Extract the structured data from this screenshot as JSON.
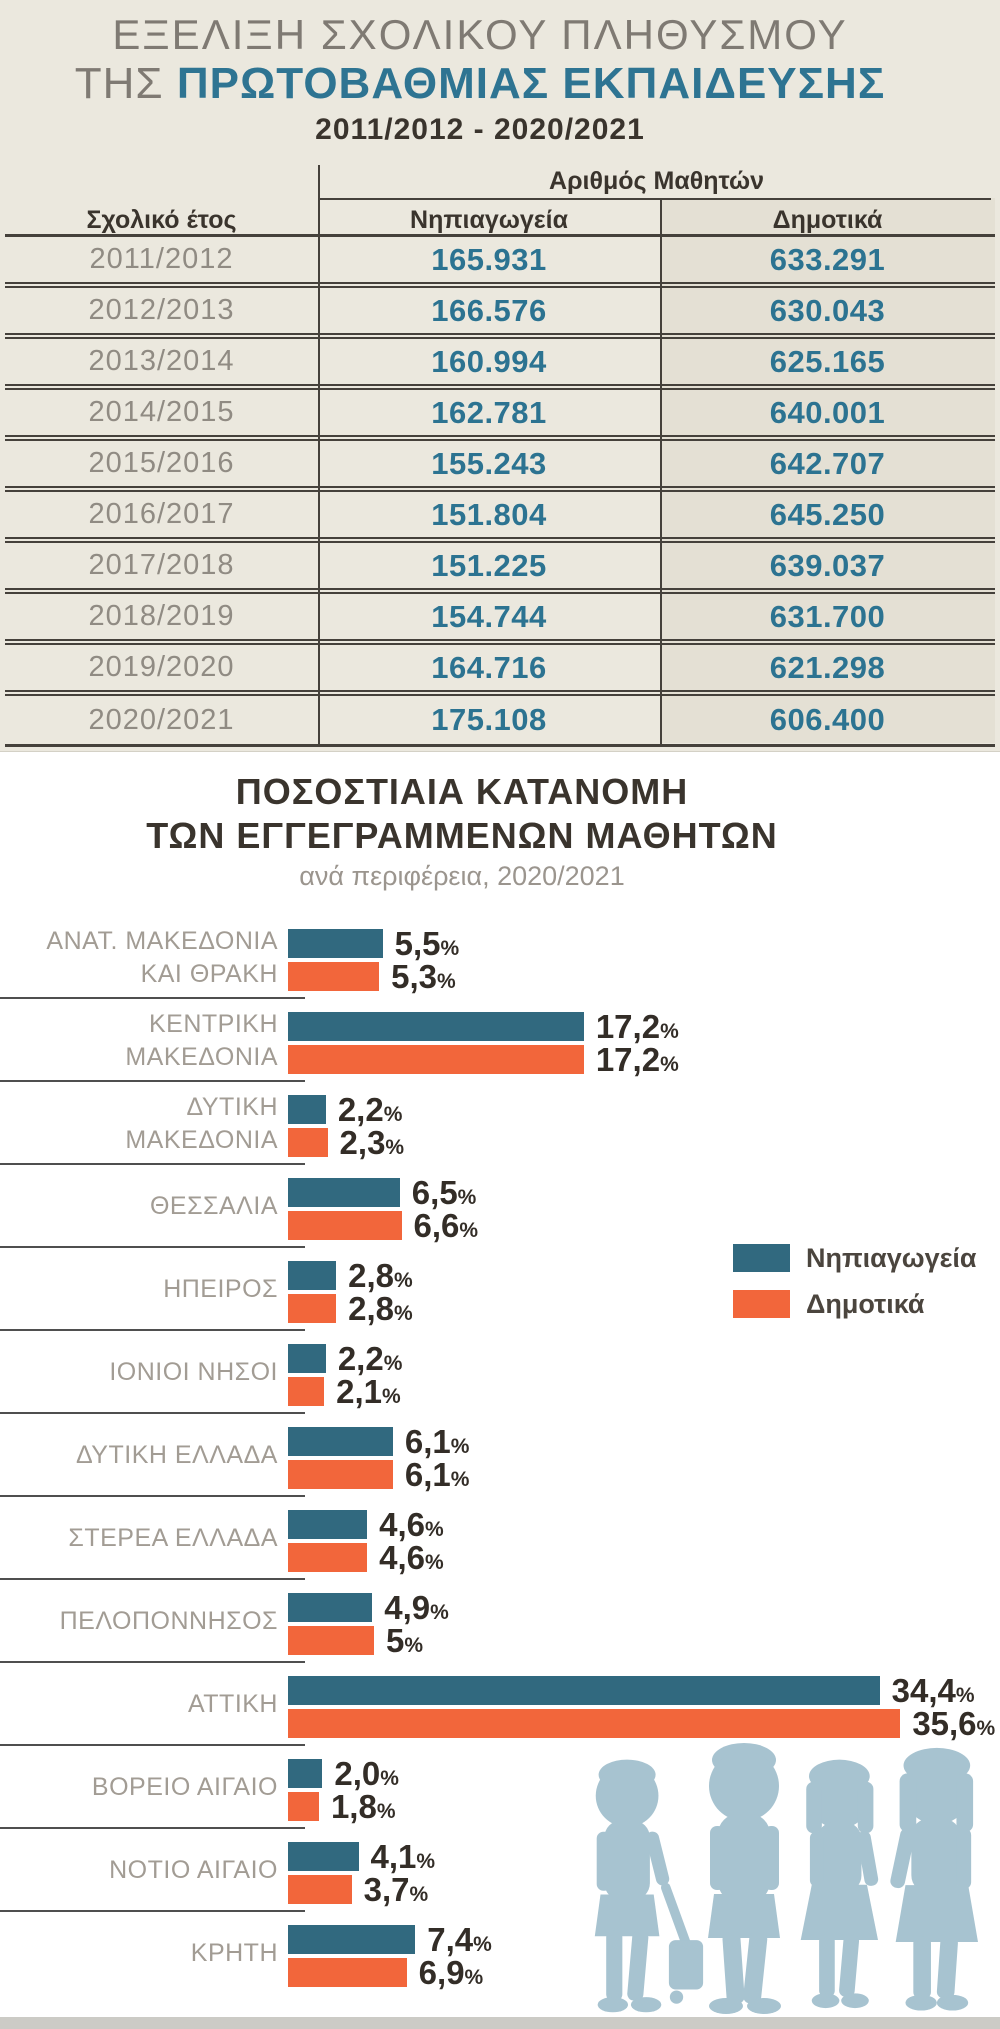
{
  "header": {
    "title_line1": "ΕΞΕΛΙΞΗ ΣΧΟΛΙΚΟΥ ΠΛΗΘΥΣΜΟΥ",
    "title_line2_prefix": "ΤΗΣ ",
    "title_line2_emphasis": "ΠΡΩΤΟΒΑΘΜΙΑΣ ΕΚΠΑΙΔΕΥΣΗΣ",
    "period": "2011/2012 - 2020/2021"
  },
  "table": {
    "year_header": "Σχολικό έτος",
    "group_header": "Αριθμός Μαθητών",
    "col1_header": "Νηπιαγωγεία",
    "col2_header": "Δημοτικά",
    "rows": [
      {
        "year": "2011/2012",
        "kindergartens": "165.931",
        "primary": "633.291"
      },
      {
        "year": "2012/2013",
        "kindergartens": "166.576",
        "primary": "630.043"
      },
      {
        "year": "2013/2014",
        "kindergartens": "160.994",
        "primary": "625.165"
      },
      {
        "year": "2014/2015",
        "kindergartens": "162.781",
        "primary": "640.001"
      },
      {
        "year": "2015/2016",
        "kindergartens": "155.243",
        "primary": "642.707"
      },
      {
        "year": "2016/2017",
        "kindergartens": "151.804",
        "primary": "645.250"
      },
      {
        "year": "2017/2018",
        "kindergartens": "151.225",
        "primary": "639.037"
      },
      {
        "year": "2018/2019",
        "kindergartens": "154.744",
        "primary": "631.700"
      },
      {
        "year": "2019/2020",
        "kindergartens": "164.716",
        "primary": "621.298"
      },
      {
        "year": "2020/2021",
        "kindergartens": "175.108",
        "primary": "606.400"
      }
    ]
  },
  "chart": {
    "title_line1": "ΠΟΣΟΣΤΙΑΙΑ ΚΑΤΑΝΟΜΗ",
    "title_line2": "ΤΩΝ ΕΓΓΕΓΡΑΜΜΕΝΩΝ ΜΑΘΗΤΩΝ",
    "subtitle": "ανά περιφέρεια, 2020/2021",
    "legend": [
      {
        "label": "Νηπιαγωγεία",
        "color": "#31697f"
      },
      {
        "label": "Δημοτικά",
        "color": "#f2663b"
      }
    ]
  },
  "chart_data": [
    {
      "type": "table",
      "title": "ΕΞΕΛΙΞΗ ΣΧΟΛΙΚΟΥ ΠΛΗΘΥΣΜΟΥ ΤΗΣ ΠΡΩΤΟΒΑΘΜΙΑΣ ΕΚΠΑΙΔΕΥΣΗΣ 2011/2012 - 2020/2021",
      "columns": [
        "Σχολικό έτος",
        "Νηπιαγωγεία",
        "Δημοτικά"
      ],
      "rows": [
        [
          "2011/2012",
          165931,
          633291
        ],
        [
          "2012/2013",
          166576,
          630043
        ],
        [
          "2013/2014",
          160994,
          625165
        ],
        [
          "2014/2015",
          162781,
          640001
        ],
        [
          "2015/2016",
          155243,
          642707
        ],
        [
          "2016/2017",
          151804,
          645250
        ],
        [
          "2017/2018",
          151225,
          639037
        ],
        [
          "2018/2019",
          154744,
          631700
        ],
        [
          "2019/2020",
          164716,
          621298
        ],
        [
          "2020/2021",
          175108,
          606400
        ]
      ]
    },
    {
      "type": "bar",
      "orientation": "horizontal",
      "title": "ΠΟΣΟΣΤΙΑΙΑ ΚΑΤΑΝΟΜΗ ΤΩΝ ΕΓΓΕΓΡΑΜΜΕΝΩΝ ΜΑΘΗΤΩΝ",
      "subtitle": "ανά περιφέρεια, 2020/2021",
      "unit": "%",
      "xlim": [
        0,
        40
      ],
      "grid": false,
      "legend_position": "right-middle",
      "categories": [
        [
          "ΑΝΑΤ. ΜΑΚΕΔΟΝΙΑ",
          "ΚΑΙ ΘΡΑΚΗ"
        ],
        [
          "ΚΕΝΤΡΙΚΗ",
          "ΜΑΚΕΔΟΝΙΑ"
        ],
        [
          "ΔΥΤΙΚΗ",
          "ΜΑΚΕΔΟΝΙΑ"
        ],
        [
          "ΘΕΣΣΑΛΙΑ"
        ],
        [
          "ΗΠΕΙΡΟΣ"
        ],
        [
          "ΙΟΝΙΟΙ ΝΗΣΟΙ"
        ],
        [
          "ΔΥΤΙΚΗ ΕΛΛΑΔΑ"
        ],
        [
          "ΣΤΕΡΕΑ ΕΛΛΑΔΑ"
        ],
        [
          "ΠΕΛΟΠΟΝΝΗΣΟΣ"
        ],
        [
          "ΑΤΤΙΚΗ"
        ],
        [
          "ΒΟΡΕΙΟ ΑΙΓΑΙΟ"
        ],
        [
          "ΝΟΤΙΟ ΑΙΓΑΙΟ"
        ],
        [
          "ΚΡΗΤΗ"
        ]
      ],
      "series": [
        {
          "name": "Νηπιαγωγεία",
          "color": "#31697f",
          "values": [
            5.5,
            17.2,
            2.2,
            6.5,
            2.8,
            2.2,
            6.1,
            4.6,
            4.9,
            34.4,
            2.0,
            4.1,
            7.4
          ],
          "labels": [
            "5,5",
            "17,2",
            "2,2",
            "6,5",
            "2,8",
            "2,2",
            "6,1",
            "4,6",
            "4,9",
            "34,4",
            "2,0",
            "4,1",
            "7,4"
          ]
        },
        {
          "name": "Δημοτικά",
          "color": "#f2663b",
          "values": [
            5.3,
            17.2,
            2.3,
            6.6,
            2.8,
            2.1,
            6.1,
            4.6,
            5.0,
            35.6,
            1.8,
            3.7,
            6.9
          ],
          "labels": [
            "5,3",
            "17,2",
            "2,3",
            "6,6",
            "2,8",
            "2,1",
            "6,1",
            "4,6",
            "5",
            "35,6",
            "1,8",
            "3,7",
            "6,9"
          ]
        }
      ]
    }
  ],
  "colors": {
    "beige_background": "#ebe8de",
    "panel_edge": "#d4d1c6",
    "title_gray": "#7f7a73",
    "title_teal": "#2e7492",
    "dark_text": "#3a342d",
    "year_text": "#908b83",
    "number_teal": "#2c7391",
    "table_line": "#45413b",
    "chart_label": "#a29c94",
    "value_text": "#332d27",
    "separator_line": "#4f4f4f",
    "bar_teal": "#31697f",
    "bar_orange": "#f2663b",
    "legend_text": "#4b453e",
    "subtitle_gray": "#9b958e",
    "silhouette_blue": "#a7c3d0",
    "ground_strip": "#cccbc6"
  }
}
